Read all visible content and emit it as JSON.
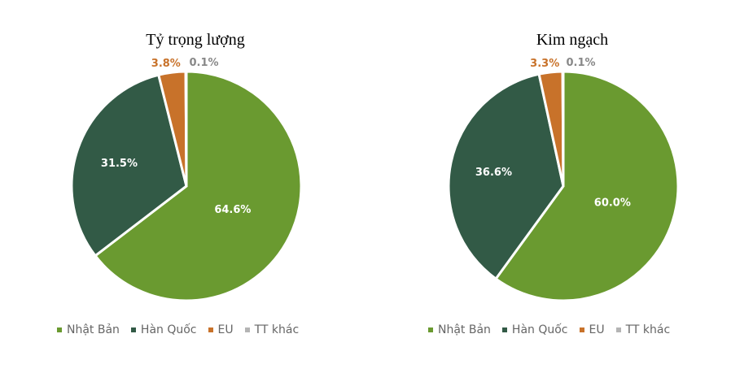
{
  "chart_data": [
    {
      "type": "pie",
      "title": "Tỷ trọng lượng",
      "categories": [
        "Nhật Bản",
        "Hàn Quốc",
        "EU",
        "TT khác"
      ],
      "values": [
        64.6,
        31.5,
        3.8,
        0.1
      ],
      "labels": [
        "64.6%",
        "31.5%",
        "3.8%",
        "0.1%"
      ],
      "colors": [
        "#6a9a30",
        "#325a46",
        "#c8722a",
        "#b4b4b4"
      ],
      "legend": "bottom"
    },
    {
      "type": "pie",
      "title": "Kim ngạch",
      "categories": [
        "Nhật Bản",
        "Hàn Quốc",
        "EU",
        "TT khác"
      ],
      "values": [
        60.0,
        36.6,
        3.3,
        0.1
      ],
      "labels": [
        "60.0%",
        "36.6%",
        "3.3%",
        "0.1%"
      ],
      "colors": [
        "#6a9a30",
        "#325a46",
        "#c8722a",
        "#b4b4b4"
      ],
      "legend": "bottom"
    }
  ]
}
